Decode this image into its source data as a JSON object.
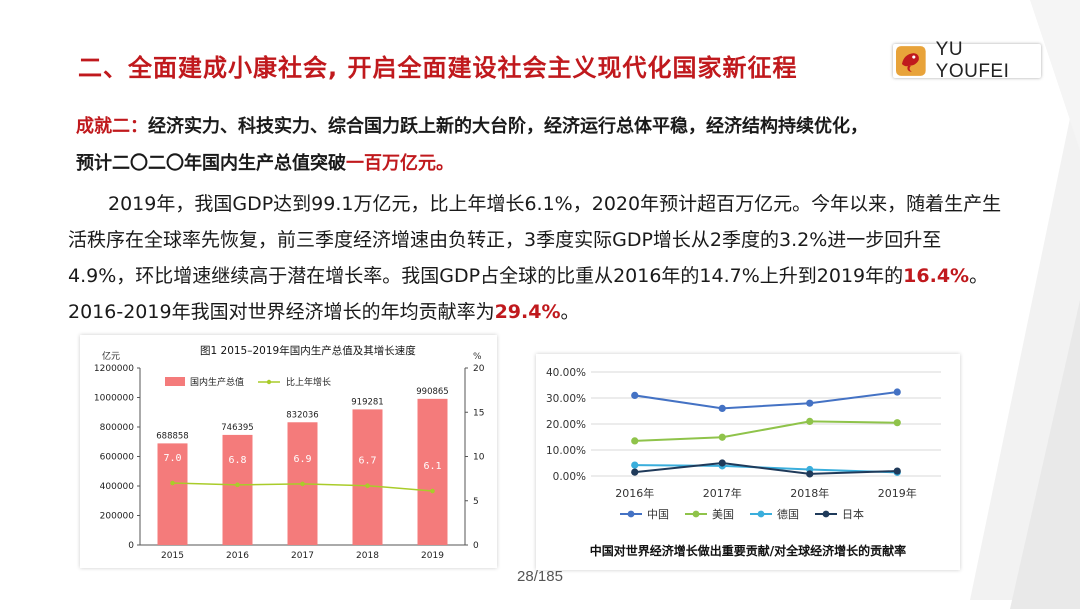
{
  "header": {
    "title": "二、全面建成小康社会, 开启全面建设社会主义现代化国家新征程",
    "logo_text": "YU YOUFEI"
  },
  "headline": {
    "label": "成就二：",
    "text": "经济实力、科技实力、综合国力跃上新的大台阶，经济运行总体平稳，经济结构持续优化，",
    "line2": "预计二〇二〇年国内生产总值突破",
    "highlight": "一百万亿元。"
  },
  "paragraph": {
    "p1": "2019年，我国GDP达到99.1万亿元，比上年增长6.1%，2020年预计超百万亿元。今年以来，随着生产生活秩序在全球率先恢复，前三季度经济增速由负转正，3季度实际GDP增长从2季度的3.2%进一步回升至4.9%，环比增速继续高于潜在增长率。我国GDP占全球的比重从2016年的14.7%上升到2019年的",
    "hl1": "16.4%",
    "p2": "。2016-2019年我国对世界经济增长的年均贡献率为",
    "hl2": "29.4%",
    "p3": "。"
  },
  "page_number": "28/185",
  "colors": {
    "accent": "#c0191d",
    "bar": "#f47b7b",
    "line": "#a9cc2a"
  },
  "chart_data": [
    {
      "type": "bar",
      "title": "图1   2015–2019年国内生产总值及其增长速度",
      "y_unit_left": "亿元",
      "y_unit_right": "%",
      "categories": [
        "2015",
        "2016",
        "2017",
        "2018",
        "2019"
      ],
      "left_ticks": [
        "0",
        "200000",
        "400000",
        "600000",
        "800000",
        "1000000",
        "1200000"
      ],
      "right_ticks": [
        "0",
        "5",
        "10",
        "15",
        "20"
      ],
      "ylim": [
        0,
        1200000
      ],
      "y2lim": [
        0,
        20
      ],
      "series": [
        {
          "name": "国内生产总值",
          "values": [
            688858,
            746395,
            832036,
            919281,
            990865
          ],
          "labels": [
            "688858",
            "746395",
            "832036",
            "919281",
            "990865"
          ]
        },
        {
          "name": "比上年增长",
          "values": [
            7.0,
            6.8,
            6.9,
            6.7,
            6.1
          ],
          "labels": [
            "7.0",
            "6.8",
            "6.9",
            "6.7",
            "6.1"
          ]
        }
      ]
    },
    {
      "type": "line",
      "categories": [
        "2016年",
        "2017年",
        "2018年",
        "2019年"
      ],
      "y_ticks": [
        "0.00%",
        "10.00%",
        "20.00%",
        "30.00%",
        "40.00%"
      ],
      "ylim": [
        0,
        40
      ],
      "grid": true,
      "legend": "bottom",
      "caption": "中国对世界经济增长做出重要贡献/对全球经济增长的贡献率",
      "series": [
        {
          "name": "中国",
          "color": "#4472c4",
          "values": [
            31.0,
            26.0,
            28.0,
            32.3
          ]
        },
        {
          "name": "美国",
          "color": "#8fc34a",
          "values": [
            13.5,
            14.9,
            21.0,
            20.5
          ]
        },
        {
          "name": "德国",
          "color": "#3aaedc",
          "values": [
            4.2,
            3.9,
            2.5,
            1.4
          ]
        },
        {
          "name": "日本",
          "color": "#1f3a5a",
          "values": [
            1.5,
            5.0,
            0.8,
            1.9
          ]
        }
      ]
    }
  ]
}
